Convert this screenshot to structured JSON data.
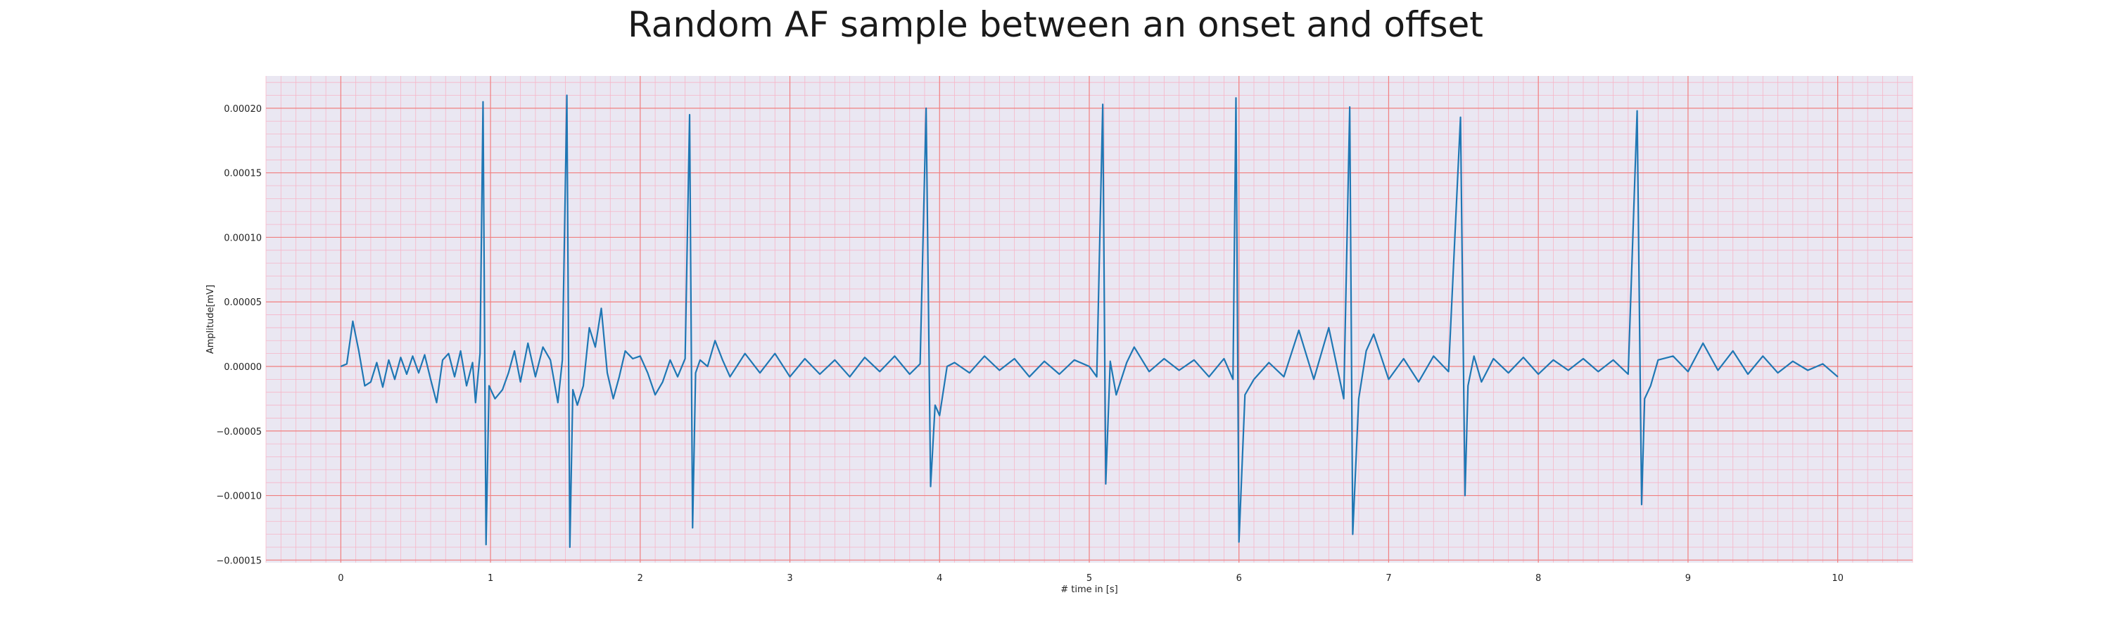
{
  "chart_data": {
    "type": "line",
    "title": "Random AF sample between an onset and offset",
    "xlabel": "# time in [s]",
    "ylabel": "Amplitude[mV]",
    "xlim": [
      -0.5,
      10.5
    ],
    "ylim": [
      -0.000152,
      0.000225
    ],
    "xticks": [
      0,
      1,
      2,
      3,
      4,
      5,
      6,
      7,
      8,
      9,
      10
    ],
    "xtick_labels": [
      "0",
      "1",
      "2",
      "3",
      "4",
      "5",
      "6",
      "7",
      "8",
      "9",
      "10"
    ],
    "yticks": [
      0.0002,
      0.00015,
      0.0001,
      5e-05,
      0,
      -5e-05,
      -0.0001,
      -0.00015
    ],
    "ytick_labels": [
      "0.00020",
      "0.00015",
      "0.00010",
      "0.00005",
      "0.00000",
      "−0.00005",
      "−0.00010",
      "−0.00015"
    ],
    "grid": true,
    "colors": {
      "line": "#1f77b4",
      "background": "#eae7f2",
      "major_grid": "#f08080",
      "minor_grid": "#f6b6c8"
    },
    "series": [
      {
        "x": [
          0.0,
          0.04,
          0.08,
          0.12,
          0.16,
          0.2,
          0.24,
          0.28,
          0.32,
          0.36,
          0.4,
          0.44,
          0.48,
          0.52,
          0.56,
          0.6,
          0.64,
          0.68,
          0.72,
          0.76,
          0.8,
          0.84,
          0.88,
          0.9,
          0.93,
          0.95,
          0.97,
          0.99,
          1.03,
          1.08,
          1.12,
          1.16,
          1.2,
          1.25,
          1.3,
          1.35,
          1.4,
          1.45,
          1.48,
          1.51,
          1.53,
          1.55,
          1.58,
          1.62,
          1.66,
          1.7,
          1.74,
          1.78,
          1.82,
          1.86,
          1.9,
          1.95,
          2.0,
          2.05,
          2.1,
          2.15,
          2.2,
          2.25,
          2.3,
          2.33,
          2.35,
          2.37,
          2.4,
          2.45,
          2.5,
          2.55,
          2.6,
          2.7,
          2.8,
          2.9,
          3.0,
          3.1,
          3.2,
          3.3,
          3.4,
          3.5,
          3.6,
          3.7,
          3.8,
          3.87,
          3.91,
          3.94,
          3.97,
          4.0,
          4.05,
          4.1,
          4.2,
          4.3,
          4.4,
          4.5,
          4.6,
          4.7,
          4.8,
          4.9,
          5.0,
          5.05,
          5.09,
          5.11,
          5.14,
          5.18,
          5.25,
          5.3,
          5.4,
          5.5,
          5.6,
          5.7,
          5.8,
          5.9,
          5.96,
          5.98,
          6.0,
          6.04,
          6.1,
          6.2,
          6.3,
          6.4,
          6.5,
          6.6,
          6.7,
          6.74,
          6.76,
          6.8,
          6.85,
          6.9,
          7.0,
          7.1,
          7.2,
          7.3,
          7.4,
          7.48,
          7.51,
          7.53,
          7.57,
          7.62,
          7.7,
          7.8,
          7.9,
          8.0,
          8.1,
          8.2,
          8.3,
          8.4,
          8.5,
          8.6,
          8.66,
          8.69,
          8.71,
          8.75,
          8.8,
          8.9,
          9.0,
          9.1,
          9.2,
          9.3,
          9.4,
          9.5,
          9.6,
          9.7,
          9.8,
          9.9,
          10.0
        ],
        "values": [
          0.0,
          2e-06,
          3.5e-05,
          1.2e-05,
          -1.5e-05,
          -1.2e-05,
          3e-06,
          -1.6e-05,
          5e-06,
          -1e-05,
          7e-06,
          -6e-06,
          8e-06,
          -5e-06,
          9e-06,
          -1e-05,
          -2.8e-05,
          5e-06,
          1e-05,
          -8e-06,
          1.2e-05,
          -1.5e-05,
          3e-06,
          -2.8e-05,
          1e-05,
          0.000205,
          -0.000138,
          -1.5e-05,
          -2.5e-05,
          -1.8e-05,
          -5e-06,
          1.2e-05,
          -1.2e-05,
          1.8e-05,
          -8e-06,
          1.5e-05,
          5e-06,
          -2.8e-05,
          5e-06,
          0.00021,
          -0.00014,
          -1.8e-05,
          -3e-05,
          -1.5e-05,
          3e-05,
          1.5e-05,
          4.5e-05,
          -5e-06,
          -2.5e-05,
          -8e-06,
          1.2e-05,
          6e-06,
          8e-06,
          -5e-06,
          -2.2e-05,
          -1.2e-05,
          5e-06,
          -8e-06,
          6e-06,
          0.000195,
          -0.000125,
          -5e-06,
          5e-06,
          0.0,
          2e-05,
          5e-06,
          -8e-06,
          1e-05,
          -5e-06,
          1e-05,
          -8e-06,
          6e-06,
          -6e-06,
          5e-06,
          -8e-06,
          7e-06,
          -4e-06,
          8e-06,
          -6e-06,
          2e-06,
          0.0002,
          -9.3e-05,
          -3e-05,
          -3.8e-05,
          0.0,
          3e-06,
          -5e-06,
          8e-06,
          -3e-06,
          6e-06,
          -8e-06,
          4e-06,
          -6e-06,
          5e-06,
          0.0,
          -8e-06,
          0.000203,
          -9.1e-05,
          4e-06,
          -2.2e-05,
          3e-06,
          1.5e-05,
          -4e-06,
          6e-06,
          -3e-06,
          5e-06,
          -8e-06,
          6e-06,
          -1e-05,
          0.000208,
          -0.000136,
          -2.2e-05,
          -1e-05,
          3e-06,
          -8e-06,
          2.8e-05,
          -1e-05,
          3e-05,
          -2.5e-05,
          0.000201,
          -0.00013,
          -2.5e-05,
          1.2e-05,
          2.5e-05,
          -1e-05,
          6e-06,
          -1.2e-05,
          8e-06,
          -4e-06,
          0.000193,
          -0.0001,
          -1.5e-05,
          8e-06,
          -1.2e-05,
          6e-06,
          -5e-06,
          7e-06,
          -6e-06,
          5e-06,
          -3e-06,
          6e-06,
          -4e-06,
          5e-06,
          -6e-06,
          0.000198,
          -0.000107,
          -2.5e-05,
          -1.5e-05,
          5e-06,
          8e-06,
          -4e-06,
          1.8e-05,
          -3e-06,
          1.2e-05,
          -6e-06,
          8e-06,
          -5e-06,
          4e-06,
          -3e-06,
          2e-06,
          -8e-06
        ]
      }
    ]
  }
}
